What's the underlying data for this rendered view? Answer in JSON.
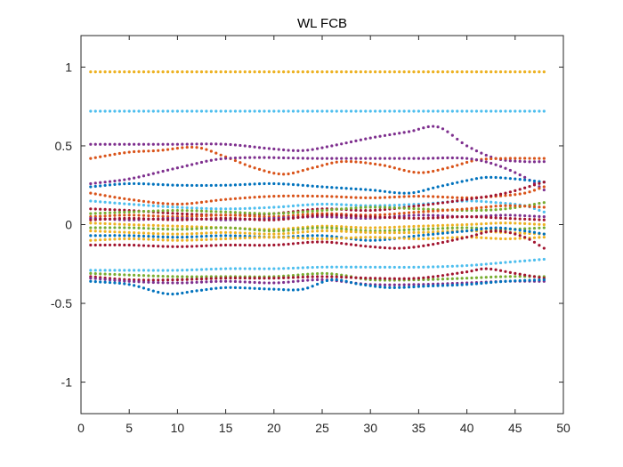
{
  "chart_data": {
    "type": "scatter",
    "title": "WL FCB",
    "xlabel": "",
    "ylabel": "",
    "xlim": [
      0,
      50
    ],
    "ylim": [
      -1.2,
      1.2
    ],
    "xticks": [
      0,
      5,
      10,
      15,
      20,
      25,
      30,
      35,
      40,
      45,
      50
    ],
    "xtick_labels": [
      "0",
      "5",
      "10",
      "15",
      "20",
      "25",
      "30",
      "35",
      "40",
      "45",
      "50"
    ],
    "yticks": [
      -1,
      -0.5,
      0,
      0.5,
      1
    ],
    "ytick_labels": [
      "-1",
      "-0.5",
      "0",
      "0.5",
      "1"
    ],
    "grid": false,
    "legend": "none",
    "marker": "dot",
    "x_range": [
      1,
      48
    ],
    "palette": [
      "#0072BD",
      "#D95319",
      "#EDB120",
      "#7E2F8E",
      "#77AC30",
      "#4DBEEE",
      "#A2142F"
    ],
    "series_curves": [
      {
        "color_index": 2,
        "knots": [
          [
            1,
            0.97
          ],
          [
            48,
            0.97
          ]
        ]
      },
      {
        "color_index": 5,
        "knots": [
          [
            1,
            0.72
          ],
          [
            48,
            0.72
          ]
        ]
      },
      {
        "color_index": 3,
        "knots": [
          [
            1,
            0.51
          ],
          [
            10,
            0.51
          ],
          [
            15,
            0.51
          ],
          [
            20,
            0.48
          ],
          [
            23,
            0.47
          ],
          [
            26,
            0.5
          ],
          [
            30,
            0.55
          ],
          [
            34,
            0.59
          ],
          [
            37,
            0.62
          ],
          [
            40,
            0.5
          ],
          [
            43,
            0.42
          ],
          [
            46,
            0.4
          ],
          [
            48,
            0.4
          ]
        ]
      },
      {
        "color_index": 1,
        "knots": [
          [
            1,
            0.42
          ],
          [
            5,
            0.46
          ],
          [
            8,
            0.47
          ],
          [
            12,
            0.49
          ],
          [
            15,
            0.43
          ],
          [
            18,
            0.36
          ],
          [
            21,
            0.32
          ],
          [
            24,
            0.36
          ],
          [
            27,
            0.4
          ],
          [
            31,
            0.38
          ],
          [
            35,
            0.33
          ],
          [
            38,
            0.36
          ],
          [
            41,
            0.41
          ],
          [
            44,
            0.42
          ],
          [
            48,
            0.42
          ]
        ]
      },
      {
        "color_index": 3,
        "knots": [
          [
            1,
            0.26
          ],
          [
            5,
            0.29
          ],
          [
            10,
            0.36
          ],
          [
            15,
            0.42
          ],
          [
            25,
            0.42
          ],
          [
            30,
            0.42
          ],
          [
            35,
            0.42
          ],
          [
            40,
            0.42
          ],
          [
            43,
            0.38
          ],
          [
            46,
            0.3
          ],
          [
            48,
            0.22
          ]
        ]
      },
      {
        "color_index": 0,
        "knots": [
          [
            1,
            0.24
          ],
          [
            5,
            0.26
          ],
          [
            10,
            0.25
          ],
          [
            15,
            0.25
          ],
          [
            20,
            0.26
          ],
          [
            25,
            0.24
          ],
          [
            30,
            0.22
          ],
          [
            34,
            0.2
          ],
          [
            37,
            0.24
          ],
          [
            40,
            0.28
          ],
          [
            42,
            0.3
          ],
          [
            45,
            0.29
          ],
          [
            48,
            0.27
          ]
        ]
      },
      {
        "color_index": 1,
        "knots": [
          [
            1,
            0.2
          ],
          [
            5,
            0.16
          ],
          [
            10,
            0.13
          ],
          [
            15,
            0.16
          ],
          [
            20,
            0.18
          ],
          [
            25,
            0.18
          ],
          [
            30,
            0.17
          ],
          [
            35,
            0.18
          ],
          [
            40,
            0.17
          ],
          [
            43,
            0.18
          ],
          [
            46,
            0.2
          ],
          [
            48,
            0.24
          ]
        ]
      },
      {
        "color_index": 5,
        "knots": [
          [
            1,
            0.15
          ],
          [
            5,
            0.13
          ],
          [
            10,
            0.11
          ],
          [
            15,
            0.1
          ],
          [
            20,
            0.11
          ],
          [
            25,
            0.13
          ],
          [
            30,
            0.12
          ],
          [
            35,
            0.13
          ],
          [
            40,
            0.15
          ],
          [
            43,
            0.14
          ],
          [
            46,
            0.12
          ],
          [
            48,
            0.08
          ]
        ]
      },
      {
        "color_index": 6,
        "knots": [
          [
            1,
            0.1
          ],
          [
            5,
            0.09
          ],
          [
            10,
            0.07
          ],
          [
            15,
            0.06
          ],
          [
            20,
            0.07
          ],
          [
            25,
            0.1
          ],
          [
            30,
            0.09
          ],
          [
            35,
            0.12
          ],
          [
            40,
            0.16
          ],
          [
            44,
            0.2
          ],
          [
            48,
            0.27
          ]
        ]
      },
      {
        "color_index": 4,
        "knots": [
          [
            1,
            0.07
          ],
          [
            5,
            0.08
          ],
          [
            10,
            0.09
          ],
          [
            15,
            0.08
          ],
          [
            20,
            0.07
          ],
          [
            25,
            0.09
          ],
          [
            30,
            0.11
          ],
          [
            35,
            0.1
          ],
          [
            40,
            0.09
          ],
          [
            44,
            0.1
          ],
          [
            48,
            0.14
          ]
        ]
      },
      {
        "color_index": 1,
        "knots": [
          [
            1,
            0.05
          ],
          [
            5,
            0.06
          ],
          [
            10,
            0.05
          ],
          [
            15,
            0.06
          ],
          [
            20,
            0.05
          ],
          [
            25,
            0.07
          ],
          [
            30,
            0.06
          ],
          [
            35,
            0.08
          ],
          [
            40,
            0.1
          ],
          [
            44,
            0.12
          ],
          [
            48,
            0.11
          ]
        ]
      },
      {
        "color_index": 3,
        "knots": [
          [
            1,
            0.04
          ],
          [
            5,
            0.03
          ],
          [
            10,
            0.04
          ],
          [
            15,
            0.03
          ],
          [
            20,
            0.04
          ],
          [
            25,
            0.05
          ],
          [
            30,
            0.04
          ],
          [
            35,
            0.06
          ],
          [
            40,
            0.05
          ],
          [
            44,
            0.06
          ],
          [
            48,
            0.05
          ]
        ]
      },
      {
        "color_index": 6,
        "knots": [
          [
            1,
            0.03
          ],
          [
            5,
            0.04
          ],
          [
            10,
            0.03
          ],
          [
            15,
            0.04
          ],
          [
            20,
            0.03
          ],
          [
            25,
            0.06
          ],
          [
            30,
            0.05
          ],
          [
            35,
            0.04
          ],
          [
            40,
            0.05
          ],
          [
            44,
            0.04
          ],
          [
            48,
            0.03
          ]
        ]
      },
      {
        "color_index": 2,
        "knots": [
          [
            1,
            0.01
          ],
          [
            5,
            0.0
          ],
          [
            10,
            -0.01
          ],
          [
            15,
            -0.02
          ],
          [
            20,
            -0.03
          ],
          [
            25,
            -0.01
          ],
          [
            30,
            -0.02
          ],
          [
            35,
            -0.01
          ],
          [
            40,
            0.0
          ],
          [
            44,
            0.01
          ],
          [
            48,
            0.0
          ]
        ]
      },
      {
        "color_index": 4,
        "knots": [
          [
            1,
            -0.02
          ],
          [
            5,
            -0.02
          ],
          [
            10,
            -0.03
          ],
          [
            15,
            -0.02
          ],
          [
            20,
            -0.04
          ],
          [
            25,
            -0.02
          ],
          [
            30,
            -0.04
          ],
          [
            35,
            -0.03
          ],
          [
            40,
            -0.02
          ],
          [
            44,
            -0.03
          ],
          [
            48,
            -0.02
          ]
        ]
      },
      {
        "color_index": 2,
        "knots": [
          [
            1,
            -0.04
          ],
          [
            5,
            -0.05
          ],
          [
            10,
            -0.06
          ],
          [
            15,
            -0.05
          ],
          [
            20,
            -0.06
          ],
          [
            25,
            -0.04
          ],
          [
            30,
            -0.05
          ],
          [
            35,
            -0.05
          ],
          [
            40,
            -0.04
          ],
          [
            44,
            -0.05
          ],
          [
            48,
            -0.06
          ]
        ]
      },
      {
        "color_index": 0,
        "knots": [
          [
            1,
            -0.07
          ],
          [
            5,
            -0.07
          ],
          [
            10,
            -0.08
          ],
          [
            15,
            -0.07
          ],
          [
            20,
            -0.08
          ],
          [
            25,
            -0.07
          ],
          [
            30,
            -0.1
          ],
          [
            35,
            -0.07
          ],
          [
            40,
            -0.04
          ],
          [
            43,
            -0.02
          ],
          [
            46,
            -0.04
          ],
          [
            48,
            -0.06
          ]
        ]
      },
      {
        "color_index": 2,
        "knots": [
          [
            1,
            -0.1
          ],
          [
            5,
            -0.09
          ],
          [
            10,
            -0.1
          ],
          [
            15,
            -0.09
          ],
          [
            20,
            -0.08
          ],
          [
            25,
            -0.09
          ],
          [
            30,
            -0.08
          ],
          [
            35,
            -0.09
          ],
          [
            40,
            -0.08
          ],
          [
            44,
            -0.09
          ],
          [
            48,
            -0.08
          ]
        ]
      },
      {
        "color_index": 6,
        "knots": [
          [
            1,
            -0.13
          ],
          [
            5,
            -0.13
          ],
          [
            10,
            -0.14
          ],
          [
            15,
            -0.13
          ],
          [
            20,
            -0.13
          ],
          [
            25,
            -0.11
          ],
          [
            30,
            -0.14
          ],
          [
            33,
            -0.15
          ],
          [
            36,
            -0.13
          ],
          [
            40,
            -0.08
          ],
          [
            43,
            -0.04
          ],
          [
            46,
            -0.08
          ],
          [
            48,
            -0.15
          ]
        ]
      },
      {
        "color_index": 5,
        "knots": [
          [
            1,
            -0.29
          ],
          [
            5,
            -0.29
          ],
          [
            10,
            -0.29
          ],
          [
            15,
            -0.28
          ],
          [
            20,
            -0.28
          ],
          [
            25,
            -0.27
          ],
          [
            30,
            -0.27
          ],
          [
            35,
            -0.27
          ],
          [
            40,
            -0.26
          ],
          [
            44,
            -0.24
          ],
          [
            48,
            -0.22
          ]
        ]
      },
      {
        "color_index": 4,
        "knots": [
          [
            1,
            -0.31
          ],
          [
            5,
            -0.32
          ],
          [
            10,
            -0.33
          ],
          [
            15,
            -0.33
          ],
          [
            20,
            -0.33
          ],
          [
            25,
            -0.31
          ],
          [
            27,
            -0.32
          ],
          [
            30,
            -0.35
          ],
          [
            35,
            -0.35
          ],
          [
            40,
            -0.34
          ],
          [
            44,
            -0.33
          ],
          [
            48,
            -0.33
          ]
        ]
      },
      {
        "color_index": 6,
        "knots": [
          [
            1,
            -0.33
          ],
          [
            5,
            -0.35
          ],
          [
            10,
            -0.35
          ],
          [
            15,
            -0.34
          ],
          [
            20,
            -0.34
          ],
          [
            25,
            -0.33
          ],
          [
            30,
            -0.34
          ],
          [
            35,
            -0.34
          ],
          [
            40,
            -0.3
          ],
          [
            42,
            -0.28
          ],
          [
            45,
            -0.31
          ],
          [
            48,
            -0.34
          ]
        ]
      },
      {
        "color_index": 3,
        "knots": [
          [
            1,
            -0.34
          ],
          [
            5,
            -0.36
          ],
          [
            10,
            -0.37
          ],
          [
            15,
            -0.36
          ],
          [
            20,
            -0.37
          ],
          [
            25,
            -0.35
          ],
          [
            30,
            -0.38
          ],
          [
            35,
            -0.38
          ],
          [
            40,
            -0.37
          ],
          [
            44,
            -0.36
          ],
          [
            48,
            -0.36
          ]
        ]
      },
      {
        "color_index": 0,
        "knots": [
          [
            1,
            -0.36
          ],
          [
            5,
            -0.38
          ],
          [
            9,
            -0.44
          ],
          [
            12,
            -0.42
          ],
          [
            15,
            -0.4
          ],
          [
            20,
            -0.41
          ],
          [
            23,
            -0.41
          ],
          [
            26,
            -0.35
          ],
          [
            29,
            -0.38
          ],
          [
            32,
            -0.4
          ],
          [
            36,
            -0.39
          ],
          [
            40,
            -0.38
          ],
          [
            44,
            -0.36
          ],
          [
            48,
            -0.35
          ]
        ]
      }
    ]
  }
}
